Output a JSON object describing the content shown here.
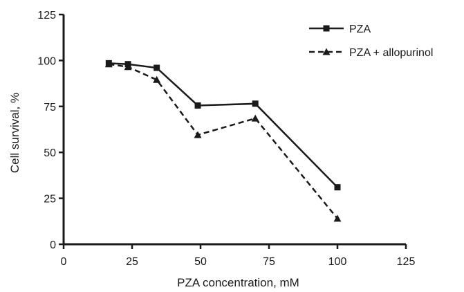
{
  "chart_data": {
    "type": "line",
    "title": "",
    "xlabel": "PZA concentration, mM",
    "ylabel": "Cell survival, %",
    "xlim": [
      0,
      125
    ],
    "ylim": [
      0,
      125
    ],
    "xticks": [
      0,
      25,
      50,
      75,
      100,
      125
    ],
    "yticks": [
      0,
      25,
      50,
      75,
      100,
      125
    ],
    "grid": false,
    "legend_position": "top-right",
    "series": [
      {
        "name": "PZA",
        "marker": "square",
        "line_style": "solid",
        "color": "#1a1a1a",
        "x": [
          16.5,
          23.5,
          34,
          49,
          70,
          100
        ],
        "y": [
          98.5,
          98,
          96,
          75.5,
          76.5,
          31
        ]
      },
      {
        "name": "PZA + allopurinol",
        "marker": "triangle",
        "line_style": "dashed",
        "color": "#1a1a1a",
        "x": [
          16.5,
          23.5,
          34,
          49,
          70,
          100
        ],
        "y": [
          98,
          96.5,
          89.5,
          59.5,
          68.5,
          14
        ]
      }
    ]
  }
}
